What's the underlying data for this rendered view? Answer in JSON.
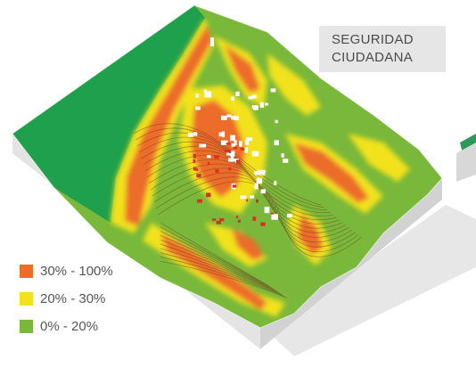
{
  "title": {
    "line1": "SEGURIDAD",
    "line2": "CIUDADANA"
  },
  "legend": {
    "items": [
      {
        "label": "30% - 100%",
        "color": "#ec6c2a"
      },
      {
        "label": "20% - 30%",
        "color": "#f2e21e"
      },
      {
        "label": "0% - 20%",
        "color": "#79b83a"
      }
    ]
  },
  "map_colors": {
    "sea": "#1fa04c",
    "terrain_low": "#79b83a",
    "terrain_mid": "#f2e21e",
    "terrain_high": "#ec6c2a",
    "block_side": "#d9d9d9",
    "block_front": "#ececec",
    "buildings": "#ffffff",
    "risk_points": "#d93020"
  }
}
